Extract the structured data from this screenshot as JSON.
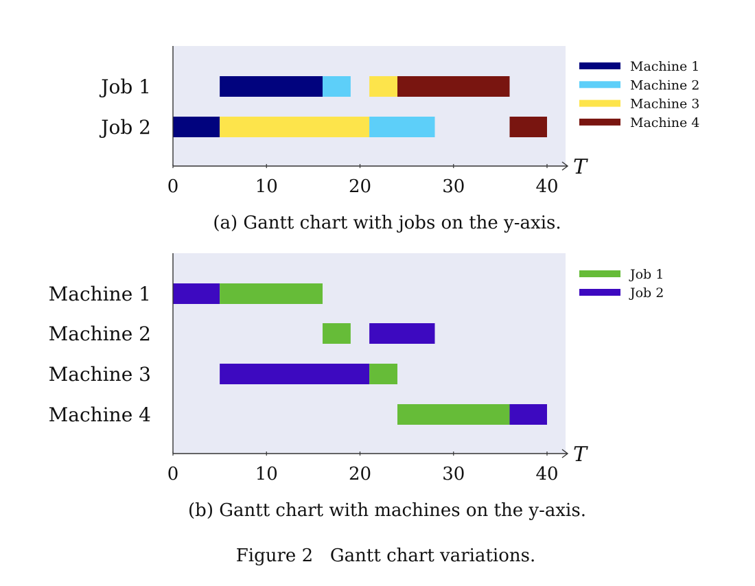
{
  "figure": {
    "caption": "Figure 2   Gantt chart variations."
  },
  "chart_data": [
    {
      "type": "gantt",
      "caption": "(a) Gantt chart with jobs on the y-axis.",
      "xlabel": "T",
      "xlim": [
        0,
        42
      ],
      "xticks": [
        0,
        10,
        20,
        30,
        40
      ],
      "background": "#e8eaf5",
      "grid": false,
      "legend_position": "right",
      "categories": [
        "Job 1",
        "Job 2"
      ],
      "series": [
        {
          "name": "Machine 1",
          "color": "#01037e"
        },
        {
          "name": "Machine 2",
          "color": "#5dcff9"
        },
        {
          "name": "Machine 3",
          "color": "#fde44b"
        },
        {
          "name": "Machine 4",
          "color": "#791510"
        }
      ],
      "tasks": [
        {
          "category": "Job 1",
          "series": "Machine 1",
          "start": 5,
          "end": 16
        },
        {
          "category": "Job 1",
          "series": "Machine 2",
          "start": 16,
          "end": 19
        },
        {
          "category": "Job 1",
          "series": "Machine 3",
          "start": 21,
          "end": 24
        },
        {
          "category": "Job 1",
          "series": "Machine 4",
          "start": 24,
          "end": 36
        },
        {
          "category": "Job 2",
          "series": "Machine 1",
          "start": 0,
          "end": 5
        },
        {
          "category": "Job 2",
          "series": "Machine 3",
          "start": 5,
          "end": 21
        },
        {
          "category": "Job 2",
          "series": "Machine 2",
          "start": 21,
          "end": 28
        },
        {
          "category": "Job 2",
          "series": "Machine 4",
          "start": 36,
          "end": 40
        }
      ]
    },
    {
      "type": "gantt",
      "caption": "(b) Gantt chart with machines on the y-axis.",
      "xlabel": "T",
      "xlim": [
        0,
        42
      ],
      "xticks": [
        0,
        10,
        20,
        30,
        40
      ],
      "background": "#e8eaf5",
      "grid": false,
      "legend_position": "right",
      "categories": [
        "Machine 1",
        "Machine 2",
        "Machine 3",
        "Machine 4"
      ],
      "series": [
        {
          "name": "Job 1",
          "color": "#66bc38"
        },
        {
          "name": "Job 2",
          "color": "#3d09c0"
        }
      ],
      "tasks": [
        {
          "category": "Machine 1",
          "series": "Job 2",
          "start": 0,
          "end": 5
        },
        {
          "category": "Machine 1",
          "series": "Job 1",
          "start": 5,
          "end": 16
        },
        {
          "category": "Machine 2",
          "series": "Job 1",
          "start": 16,
          "end": 19
        },
        {
          "category": "Machine 2",
          "series": "Job 2",
          "start": 21,
          "end": 28
        },
        {
          "category": "Machine 3",
          "series": "Job 2",
          "start": 5,
          "end": 21
        },
        {
          "category": "Machine 3",
          "series": "Job 1",
          "start": 21,
          "end": 24
        },
        {
          "category": "Machine 4",
          "series": "Job 1",
          "start": 24,
          "end": 36
        },
        {
          "category": "Machine 4",
          "series": "Job 2",
          "start": 36,
          "end": 40
        }
      ]
    }
  ]
}
